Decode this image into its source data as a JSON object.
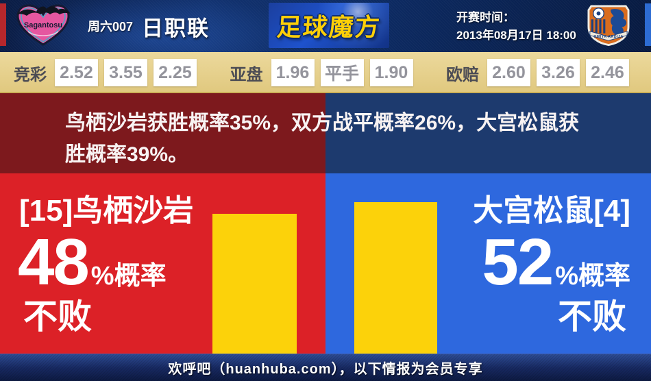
{
  "header": {
    "league_tag": "周六007",
    "league_name": "日职联",
    "brand": "足球魔方",
    "kickoff_label": "开赛时间：",
    "kickoff_time": "2013年08月17日 18:00",
    "home_logo_text": "Sagantosu",
    "away_logo_text": "OMIYA ARDIJA"
  },
  "odds": {
    "jingcai": {
      "label": "竞彩",
      "values": [
        "2.52",
        "3.55",
        "2.25"
      ]
    },
    "yapan": {
      "label": "亚盘",
      "values": [
        "1.96",
        "平手",
        "1.90"
      ]
    },
    "oupei": {
      "label": "欧赔",
      "values": [
        "2.60",
        "3.26",
        "2.46"
      ]
    }
  },
  "analysis": {
    "text": "鸟栖沙岩获胜概率35%，双方战平概率26%，大宫松鼠获胜概率39%。"
  },
  "panels": {
    "home": {
      "team": "[15]鸟栖沙岩",
      "percent": "48",
      "percent_suffix": "%概率",
      "result": "不败",
      "bar_percent": 48
    },
    "away": {
      "team": "大宫松鼠[4]",
      "percent": "52",
      "percent_suffix": "%概率",
      "result": "不败",
      "bar_percent": 52
    }
  },
  "footer": {
    "text": "欢呼吧（huanhuba.com），以下情报为会员专享"
  },
  "colors": {
    "home_accent": "#dc2127",
    "away_accent": "#2e68de",
    "bar": "#fcd20a",
    "odds_bg": "#e0c87e"
  },
  "chart_data": {
    "type": "bar",
    "categories": [
      "[15]鸟栖沙岩 不败",
      "大宫松鼠[4] 不败"
    ],
    "values": [
      48,
      52
    ],
    "unit": "%"
  }
}
